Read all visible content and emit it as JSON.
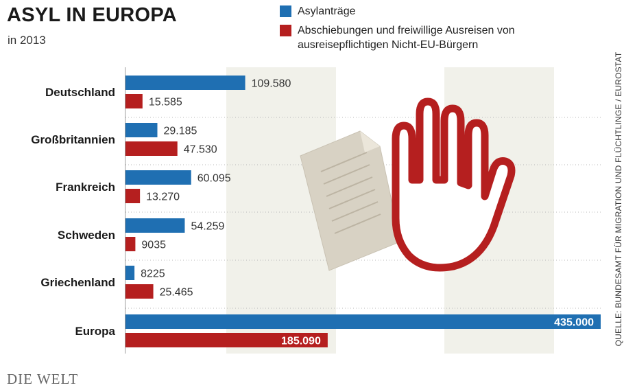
{
  "header": {
    "title": "ASYL IN EUROPA",
    "subtitle": "in 2013"
  },
  "legend": [
    {
      "label": "Asylanträge",
      "color": "#1f6fb2"
    },
    {
      "label": "Abschiebungen und freiwillige Ausreisen von ausreisepflichtigen Nicht-EU-Bürgern",
      "color": "#b51f1f"
    }
  ],
  "source": "QUELLE: BUNDESAMT FÜR MIGRATION UND FLÜCHTLINGE / EUROSTAT",
  "brand": "DIE WELT",
  "chart_data": {
    "type": "bar",
    "orientation": "horizontal",
    "categories": [
      "Deutschland",
      "Großbritannien",
      "Frankreich",
      "Schweden",
      "Griechenland",
      "Europa"
    ],
    "series": [
      {
        "name": "Asylanträge",
        "color": "#1f6fb2",
        "values": [
          109580,
          29185,
          60095,
          54259,
          8225,
          435000
        ],
        "labels": [
          "109.580",
          "29.185",
          "60.095",
          "54.259",
          "8225",
          "435.000"
        ]
      },
      {
        "name": "Abschiebungen und freiwillige Ausreisen von ausreisepflichtigen Nicht-EU-Bürgern",
        "color": "#b51f1f",
        "values": [
          15585,
          47530,
          13270,
          9035,
          25465,
          185090
        ],
        "labels": [
          "15.585",
          "47.530",
          "13.270",
          "9035",
          "25.465",
          "185.090"
        ]
      }
    ],
    "xlim": [
      0,
      435000
    ],
    "legend_position": "top-right",
    "grid": false
  }
}
